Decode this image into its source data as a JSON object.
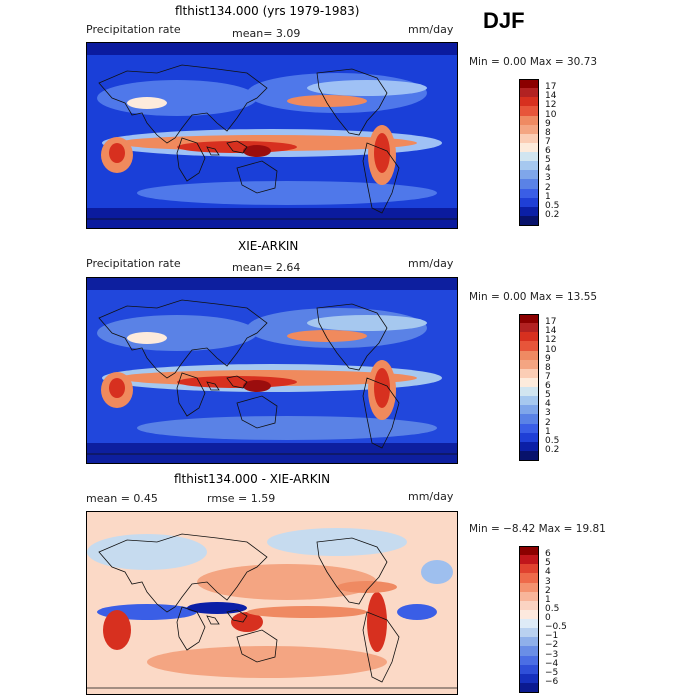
{
  "season": "DJF",
  "panels": [
    {
      "id": "model",
      "title": "flthist134.000 (yrs 1979-1983)",
      "left_label": "Precipitation rate",
      "stat1": "mean=   3.09",
      "stat2": "",
      "units": "mm/day",
      "minmax": "Min =   0.00 Max =  30.73",
      "colorbar": {
        "labels": [
          "17",
          "14",
          "12",
          "10",
          "9",
          "8",
          "7",
          "6",
          "5",
          "4",
          "3",
          "2",
          "1",
          "0.5",
          "0.2"
        ],
        "colors": [
          "#8b0000",
          "#b22222",
          "#d7301f",
          "#e7553a",
          "#ef8a62",
          "#f4a582",
          "#fbcdb5",
          "#fdebdc",
          "#d1e5f0",
          "#a6c8ef",
          "#7fa6ea",
          "#5a82e6",
          "#3a5ee6",
          "#1f3fd6",
          "#0b1fa6",
          "#08126b"
        ]
      },
      "map_colors": {
        "base": "#1a3fd8",
        "dark": "#0b1b9e",
        "mid": "#4f78ea",
        "light": "#9fc1f5",
        "pale": "#fdebdc",
        "orange": "#f08a5d",
        "red": "#d7301f",
        "darkred": "#9b0d0d"
      }
    },
    {
      "id": "obs",
      "title": "XIE-ARKIN",
      "left_label": "Precipitation rate",
      "stat1": "mean=   2.64",
      "stat2": "",
      "units": "mm/day",
      "minmax": "Min =   0.00 Max =  13.55",
      "colorbar": {
        "labels": [
          "17",
          "14",
          "12",
          "10",
          "9",
          "8",
          "7",
          "6",
          "5",
          "4",
          "3",
          "2",
          "1",
          "0.5",
          "0.2"
        ],
        "colors": [
          "#8b0000",
          "#b22222",
          "#d7301f",
          "#e7553a",
          "#ef8a62",
          "#f4a582",
          "#fbcdb5",
          "#fdebdc",
          "#d1e5f0",
          "#a6c8ef",
          "#7fa6ea",
          "#5a82e6",
          "#3a5ee6",
          "#1f3fd6",
          "#0b1fa6",
          "#08126b"
        ]
      },
      "map_colors": {
        "base": "#2147dc",
        "dark": "#0d1f9f",
        "mid": "#5a82e6",
        "light": "#a6c8ef",
        "pale": "#fdebdc",
        "orange": "#f08a5d",
        "red": "#d7301f",
        "darkred": "#9b0d0d"
      }
    },
    {
      "id": "diff",
      "title": "flthist134.000 - XIE-ARKIN",
      "left_label": "mean =    0.45",
      "stat1": "",
      "stat2": "rmse =    1.59",
      "units": "mm/day",
      "minmax": "Min =  −8.42 Max =   19.81",
      "colorbar": {
        "labels": [
          "6",
          "5",
          "4",
          "3",
          "2",
          "1",
          "0.5",
          "0",
          "−0.5",
          "−1",
          "−2",
          "−3",
          "−4",
          "−5",
          "−6"
        ],
        "colors": [
          "#8b0000",
          "#c0161b",
          "#e0422f",
          "#ee6a4a",
          "#f4926f",
          "#f8b59a",
          "#fbd3c2",
          "#fde9de",
          "#deebf7",
          "#b9d1f0",
          "#8fb0ea",
          "#6a8ee6",
          "#4b6ee4",
          "#2f4fd8",
          "#1630bd",
          "#0b1a90"
        ]
      },
      "map_colors": {
        "base": "#fbd9c6",
        "dark": "#f4a582",
        "mid": "#c6dbef",
        "light": "#9ebfee",
        "pale": "#fde9de",
        "orange": "#ef8a62",
        "red": "#d7301f",
        "darkred": "#8b0000",
        "blue": "#3a5ee6",
        "darkblue": "#0b1fa6"
      }
    }
  ]
}
